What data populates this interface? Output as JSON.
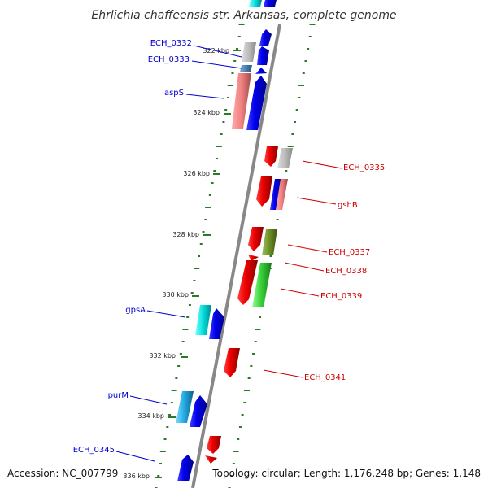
{
  "title": "Ehrlichia chaffeensis str. Arkansas, complete genome",
  "footer": {
    "accession": "Accession: NC_007799",
    "topology": "Topology: circular; Length: 1,176,248 bp; Genes: 1,148"
  },
  "ticks": [
    "322 kbp",
    "324 kbp",
    "326 kbp",
    "328 kbp",
    "330 kbp",
    "332 kbp",
    "334 kbp",
    "336 kbp"
  ],
  "left_labels": [
    "ECH_0332",
    "ECH_0333",
    "aspS",
    "gpsA",
    "purM",
    "ECH_0345"
  ],
  "right_labels": [
    "ECH_0335",
    "gshB",
    "ECH_0337",
    "ECH_0338",
    "ECH_0339",
    "ECH_0341"
  ],
  "colors": {
    "forward_label": "#0000cc",
    "reverse_label": "#cc0000",
    "backbone": "#888888",
    "tick_marks": "#2a7a2a"
  }
}
